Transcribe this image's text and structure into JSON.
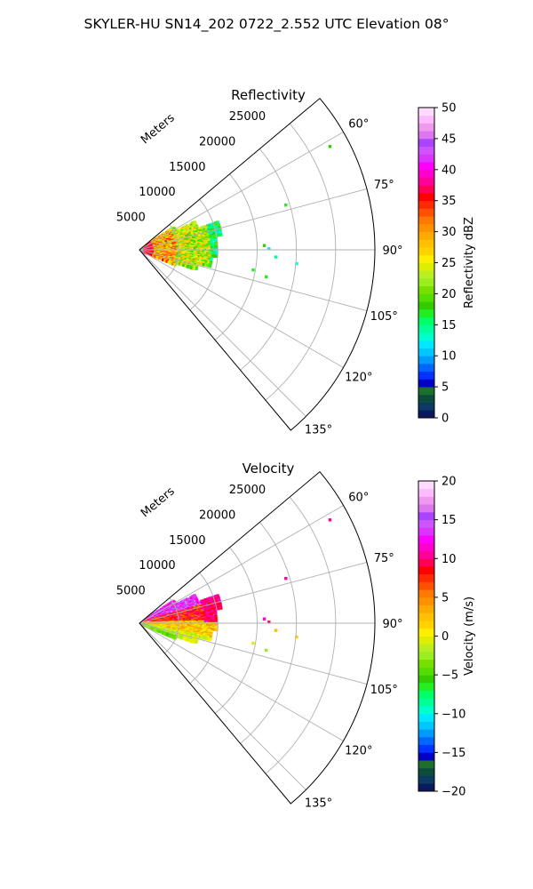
{
  "suptitle": "SKYLER-HU  SN14_202  0722_2.552 UTC Elevation 08°",
  "chart_data": [
    {
      "type": "heatmap",
      "subtype": "polar-sector-ppi",
      "title": "Reflectivity",
      "range_label": "Meters",
      "range_ticks": [
        5000,
        10000,
        15000,
        20000,
        25000
      ],
      "range_tick_labels": [
        "5000",
        "10000",
        "15000",
        "20000",
        "25000"
      ],
      "rmax": 30000,
      "azimuth_range": [
        50,
        140
      ],
      "azimuth_ticks": [
        60,
        75,
        90,
        105,
        120,
        135
      ],
      "azimuth_tick_labels": [
        "60°",
        "75°",
        "90°",
        "105°",
        "120°",
        "135°"
      ],
      "grid": true,
      "colorbar": {
        "label": "Reflectivity dBZ",
        "min": 0,
        "max": 50,
        "ticks": [
          0,
          5,
          10,
          15,
          20,
          25,
          30,
          35,
          40,
          45,
          50
        ],
        "tick_labels": [
          "0",
          "5",
          "10",
          "15",
          "20",
          "25",
          "30",
          "35",
          "40",
          "45",
          "50"
        ],
        "colors": [
          "#0a1a5c",
          "#0d3b66",
          "#0b4d3a",
          "#1e6e2e",
          "#0000c8",
          "#0033ff",
          "#0066ff",
          "#0099ff",
          "#00c8ff",
          "#00e8ff",
          "#00ffcc",
          "#00ff99",
          "#00ff66",
          "#22ee22",
          "#33cc00",
          "#55dd00",
          "#77e000",
          "#99ee22",
          "#bbee22",
          "#ddee00",
          "#ffee00",
          "#ffd200",
          "#ffc000",
          "#ffaa00",
          "#ff9000",
          "#ff7800",
          "#ff5000",
          "#ff2a00",
          "#ff0000",
          "#ff0055",
          "#ff0099",
          "#ff00cc",
          "#ff00ff",
          "#dd33ff",
          "#cc55ff",
          "#aa44ff",
          "#dd77ee",
          "#ee99ee",
          "#ffbbff",
          "#ffdcff"
        ]
      }
    },
    {
      "type": "heatmap",
      "subtype": "polar-sector-ppi",
      "title": "Velocity",
      "range_label": "Meters",
      "range_ticks": [
        5000,
        10000,
        15000,
        20000,
        25000
      ],
      "range_tick_labels": [
        "5000",
        "10000",
        "15000",
        "20000",
        "25000"
      ],
      "rmax": 30000,
      "azimuth_range": [
        50,
        140
      ],
      "azimuth_ticks": [
        60,
        75,
        90,
        105,
        120,
        135
      ],
      "azimuth_tick_labels": [
        "60°",
        "75°",
        "90°",
        "105°",
        "120°",
        "135°"
      ],
      "grid": true,
      "colorbar": {
        "label": "Velocity (m/s)",
        "min": -20,
        "max": 20,
        "ticks": [
          -20,
          -15,
          -10,
          -5,
          0,
          5,
          10,
          15,
          20
        ],
        "tick_labels": [
          "−20",
          "−15",
          "−10",
          "−5",
          "0",
          "5",
          "10",
          "15",
          "20"
        ],
        "colors": [
          "#0a1a5c",
          "#0d3b66",
          "#0b4d3a",
          "#1e6e2e",
          "#0000c8",
          "#0033ff",
          "#0066ff",
          "#0099ff",
          "#00c8ff",
          "#00e8ff",
          "#00ffcc",
          "#00ff99",
          "#00ff66",
          "#22ee22",
          "#33cc00",
          "#55dd00",
          "#77e000",
          "#99ee22",
          "#bbee22",
          "#ddee00",
          "#ffee00",
          "#ffd200",
          "#ffc000",
          "#ffaa00",
          "#ff9000",
          "#ff7800",
          "#ff5000",
          "#ff2a00",
          "#ff0000",
          "#ff0055",
          "#ff0099",
          "#ff00cc",
          "#ff00ff",
          "#dd33ff",
          "#cc55ff",
          "#aa44ff",
          "#dd77ee",
          "#ee99ee",
          "#ffbbff",
          "#ffdcff"
        ]
      }
    }
  ]
}
